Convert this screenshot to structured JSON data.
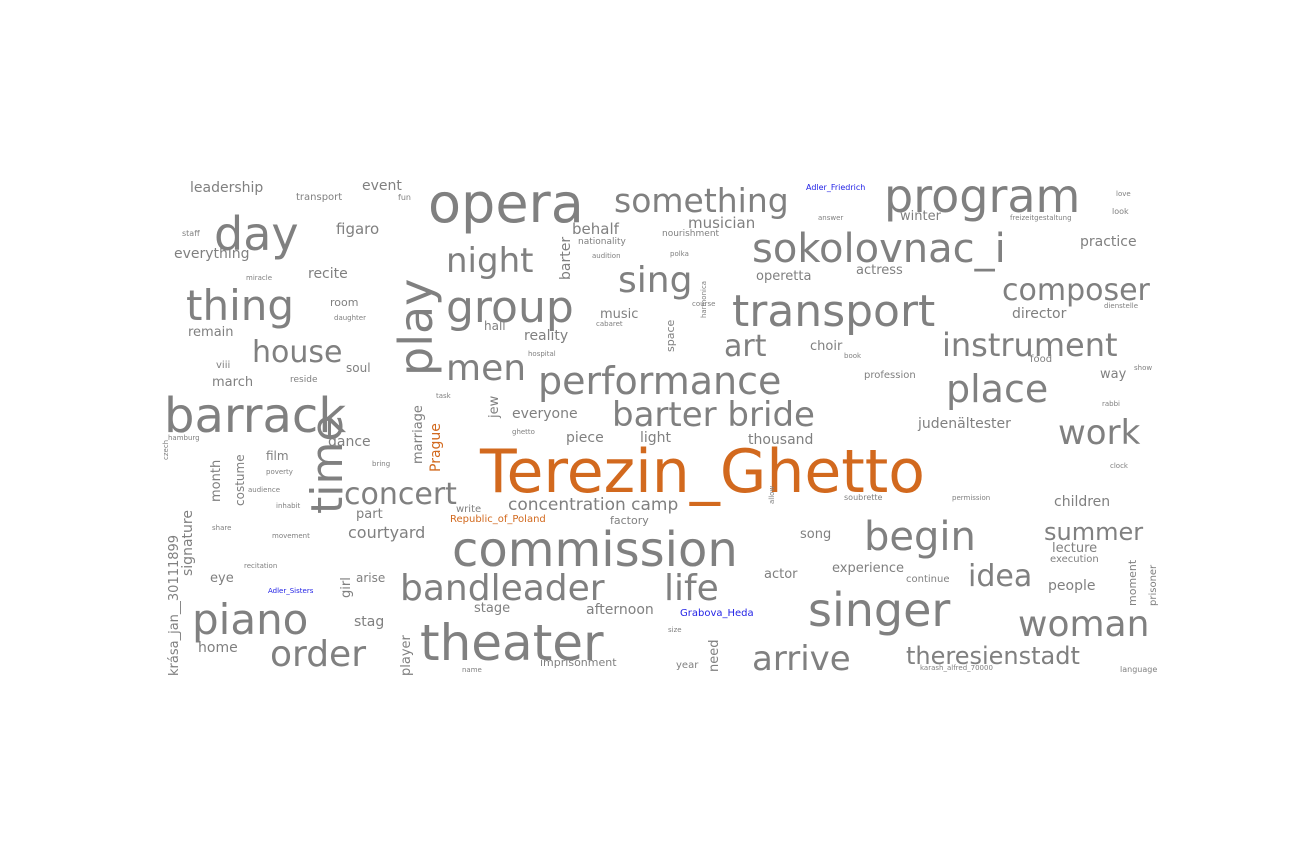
{
  "colors": {
    "default": "#808080",
    "highlight": "#d2691e",
    "entity": "#2323e6"
  },
  "words": [
    {
      "text": "Terezin_Ghetto",
      "color": "highlight"
    },
    {
      "text": "opera"
    },
    {
      "text": "program"
    },
    {
      "text": "something"
    },
    {
      "text": "day"
    },
    {
      "text": "sokolovnac_i"
    },
    {
      "text": "play"
    },
    {
      "text": "night"
    },
    {
      "text": "sing"
    },
    {
      "text": "thing"
    },
    {
      "text": "group"
    },
    {
      "text": "transport"
    },
    {
      "text": "composer"
    },
    {
      "text": "house"
    },
    {
      "text": "art"
    },
    {
      "text": "instrument"
    },
    {
      "text": "men"
    },
    {
      "text": "performance"
    },
    {
      "text": "place"
    },
    {
      "text": "barrack"
    },
    {
      "text": "barter bride"
    },
    {
      "text": "work"
    },
    {
      "text": "time"
    },
    {
      "text": "concert"
    },
    {
      "text": "commission"
    },
    {
      "text": "begin"
    },
    {
      "text": "summer"
    },
    {
      "text": "bandleader"
    },
    {
      "text": "life"
    },
    {
      "text": "idea"
    },
    {
      "text": "singer"
    },
    {
      "text": "piano"
    },
    {
      "text": "woman"
    },
    {
      "text": "theater"
    },
    {
      "text": "order"
    },
    {
      "text": "arrive"
    },
    {
      "text": "theresienstadt"
    },
    {
      "text": "concentration camp"
    },
    {
      "text": "courtyard"
    },
    {
      "text": "leadership"
    },
    {
      "text": "event"
    },
    {
      "text": "figaro"
    },
    {
      "text": "musician"
    },
    {
      "text": "behalf"
    },
    {
      "text": "everything"
    },
    {
      "text": "recite"
    },
    {
      "text": "remain"
    },
    {
      "text": "room"
    },
    {
      "text": "hall"
    },
    {
      "text": "reality"
    },
    {
      "text": "music"
    },
    {
      "text": "space"
    },
    {
      "text": "operetta"
    },
    {
      "text": "actress"
    },
    {
      "text": "practice"
    },
    {
      "text": "director"
    },
    {
      "text": "winter"
    },
    {
      "text": "choir"
    },
    {
      "text": "soul"
    },
    {
      "text": "march"
    },
    {
      "text": "viii"
    },
    {
      "text": "marriage"
    },
    {
      "text": "everyone"
    },
    {
      "text": "dance"
    },
    {
      "text": "piece"
    },
    {
      "text": "light"
    },
    {
      "text": "thousand"
    },
    {
      "text": "judenältester"
    },
    {
      "text": "film"
    },
    {
      "text": "month"
    },
    {
      "text": "costume"
    },
    {
      "text": "signature"
    },
    {
      "text": "part"
    },
    {
      "text": "write"
    },
    {
      "text": "factory"
    },
    {
      "text": "song"
    },
    {
      "text": "children"
    },
    {
      "text": "lecture"
    },
    {
      "text": "people"
    },
    {
      "text": "moment"
    },
    {
      "text": "prisoner"
    },
    {
      "text": "experience"
    },
    {
      "text": "continue"
    },
    {
      "text": "actor"
    },
    {
      "text": "afternoon"
    },
    {
      "text": "stage"
    },
    {
      "text": "stag"
    },
    {
      "text": "girl"
    },
    {
      "text": "arise"
    },
    {
      "text": "eye"
    },
    {
      "text": "home"
    },
    {
      "text": "player"
    },
    {
      "text": "need"
    },
    {
      "text": "imprisonment"
    },
    {
      "text": "year"
    },
    {
      "text": "krása_jan__30111899"
    },
    {
      "text": "Prague",
      "color": "highlight"
    },
    {
      "text": "Republic_of_Poland",
      "color": "highlight"
    },
    {
      "text": "Adler_Friedrich",
      "color": "entity"
    },
    {
      "text": "Adler_Sisters",
      "color": "entity"
    },
    {
      "text": "Grabova_Heda",
      "color": "entity"
    },
    {
      "text": "barter"
    },
    {
      "text": "jew"
    },
    {
      "text": "way"
    },
    {
      "text": "profession"
    },
    {
      "text": "food"
    },
    {
      "text": "execution"
    },
    {
      "text": "nationality"
    },
    {
      "text": "nourishment"
    },
    {
      "text": "look"
    },
    {
      "text": "transport"
    },
    {
      "text": "fun"
    },
    {
      "text": "staff"
    },
    {
      "text": "miracle"
    },
    {
      "text": "daughter"
    },
    {
      "text": "reside"
    },
    {
      "text": "hospital"
    },
    {
      "text": "audition"
    },
    {
      "text": "polka"
    },
    {
      "text": "course"
    },
    {
      "text": "harmonica"
    },
    {
      "text": "book"
    },
    {
      "text": "rabbi"
    },
    {
      "text": "clock"
    },
    {
      "text": "show"
    },
    {
      "text": "answer"
    },
    {
      "text": "freizeitgestaltung"
    },
    {
      "text": "dienstelle"
    },
    {
      "text": "ghetto"
    },
    {
      "text": "bring"
    },
    {
      "text": "poverty"
    },
    {
      "text": "audience"
    },
    {
      "text": "inhabit"
    },
    {
      "text": "share"
    },
    {
      "text": "recitation"
    },
    {
      "text": "movement"
    },
    {
      "text": "cabaret"
    },
    {
      "text": "soubrette"
    },
    {
      "text": "permission"
    },
    {
      "text": "allow"
    },
    {
      "text": "size"
    },
    {
      "text": "name"
    },
    {
      "text": "hamburg"
    },
    {
      "text": "czech"
    },
    {
      "text": "karash_alfred_70000"
    },
    {
      "text": "language"
    },
    {
      "text": "love"
    },
    {
      "text": "task"
    }
  ]
}
